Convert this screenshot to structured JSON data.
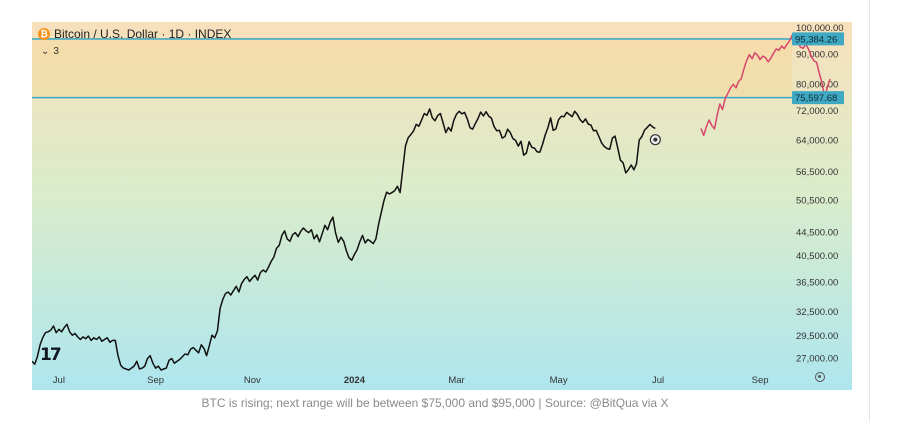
{
  "chart_data": {
    "type": "line",
    "title": "Bitcoin / U.S. Dollar · 1D · INDEX",
    "indicator_count": "3",
    "y_scale": "log",
    "ylim": [
      25500,
      102000
    ],
    "y_ticks": [
      "100,000.00",
      "90,000.00",
      "80,000.00",
      "72,000.00",
      "64,000.00",
      "56,500.00",
      "50,500.00",
      "44,500.00",
      "40,500.00",
      "36,500.00",
      "32,500.00",
      "29,500.00",
      "27,000.00"
    ],
    "x_ticks": [
      "Jul",
      "Sep",
      "Nov",
      "2024",
      "Mar",
      "May",
      "Jul",
      "Sep"
    ],
    "x_tick_index": [
      10,
      46,
      82,
      120,
      158,
      196,
      233,
      271
    ],
    "horizontal_levels": [
      {
        "label": "95,384.26",
        "value": 95384.26,
        "color": "#3fa9c3"
      },
      {
        "label": "75,597.68",
        "value": 75597.68,
        "color": "#3fa9c3"
      }
    ],
    "series": [
      {
        "name": "historical",
        "color": "#111111",
        "values": [
          26600,
          26300,
          27100,
          28400,
          29200,
          29800,
          29900,
          30100,
          30600,
          29800,
          30200,
          29900,
          30400,
          30800,
          29900,
          29500,
          29700,
          29300,
          29000,
          29300,
          29100,
          29400,
          28900,
          29200,
          29000,
          29300,
          28800,
          29000,
          29200,
          28700,
          28900,
          28900,
          27200,
          26200,
          25900,
          25800,
          25700,
          25900,
          26100,
          26600,
          25800,
          25900,
          26100,
          26900,
          27200,
          26400,
          25900,
          26100,
          25700,
          25800,
          25900,
          26700,
          26900,
          26400,
          26600,
          26800,
          27100,
          27400,
          27300,
          27900,
          28100,
          27800,
          27500,
          28400,
          28000,
          27200,
          28300,
          29500,
          29200,
          30000,
          32800,
          34000,
          34800,
          35000,
          34600,
          35200,
          35800,
          35000,
          36200,
          36800,
          37200,
          36500,
          37000,
          37400,
          36700,
          37800,
          38200,
          37900,
          38600,
          39500,
          40200,
          41600,
          42100,
          43800,
          44600,
          43200,
          42800,
          43900,
          44300,
          43600,
          44500,
          45100,
          44600,
          44300,
          44800,
          43200,
          43900,
          42700,
          44100,
          45600,
          44800,
          46200,
          47100,
          44200,
          42600,
          43500,
          42800,
          41200,
          40100,
          39700,
          40600,
          41400,
          42700,
          43800,
          42500,
          43100,
          42800,
          42400,
          43200,
          45800,
          48000,
          50300,
          52000,
          51600,
          51900,
          52300,
          53200,
          51900,
          57000,
          62500,
          64500,
          65300,
          66200,
          68000,
          67500,
          69200,
          71000,
          70500,
          72300,
          69800,
          69000,
          70400,
          71000,
          68400,
          65800,
          67200,
          66200,
          69100,
          70800,
          71600,
          70900,
          71300,
          69500,
          67100,
          66700,
          68200,
          69600,
          71400,
          70300,
          71500,
          70200,
          69700,
          67400,
          66300,
          66400,
          64400,
          64800,
          66700,
          65800,
          64300,
          63800,
          62400,
          63600,
          60200,
          60700,
          63500,
          62100,
          61900,
          61000,
          60900,
          62800,
          65200,
          67100,
          69800,
          66400,
          66800,
          69300,
          70200,
          70100,
          71300,
          70700,
          70100,
          71600,
          70700,
          69300,
          68500,
          69500,
          68100,
          67800,
          66300,
          66400,
          64800,
          63200,
          62300,
          61800,
          61600,
          64400,
          64900,
          62000,
          59000,
          58400,
          56100,
          56900,
          57900,
          56800,
          58200,
          63900,
          64800,
          66500,
          67200,
          68000,
          67300,
          66900
        ],
        "marker_value": 64000
      },
      {
        "name": "projection",
        "color": "#d6466a",
        "start_index": 249,
        "values": [
          66900,
          65100,
          67400,
          69200,
          67700,
          66800,
          70400,
          73700,
          72100,
          75400,
          76900,
          78600,
          79700,
          78600,
          80600,
          81500,
          84800,
          87600,
          89600,
          88200,
          90300,
          89500,
          87900,
          89100,
          88600,
          87100,
          88400,
          90200,
          91700,
          91200,
          92700,
          91800,
          93400,
          94700,
          96900,
          95200,
          94500,
          92300,
          91900,
          93500,
          91600,
          89100,
          87500,
          86900,
          83400,
          80200,
          75800,
          78700,
          81400
        ]
      }
    ],
    "caption": "BTC is rising; next range will be between $75,000 and $95,000 | Source: @BitQua via X",
    "colors": {
      "bg_top": "#f8e0bb",
      "bg_mid": "#d9eccb",
      "bg_bottom": "#aee6ef",
      "level_line": "#3fa9c3",
      "level_fill": "#f5d58a"
    },
    "icons": [
      "bitcoin-logo-icon",
      "chevron-down-icon",
      "tradingview-logo-icon",
      "settings-icon"
    ]
  }
}
